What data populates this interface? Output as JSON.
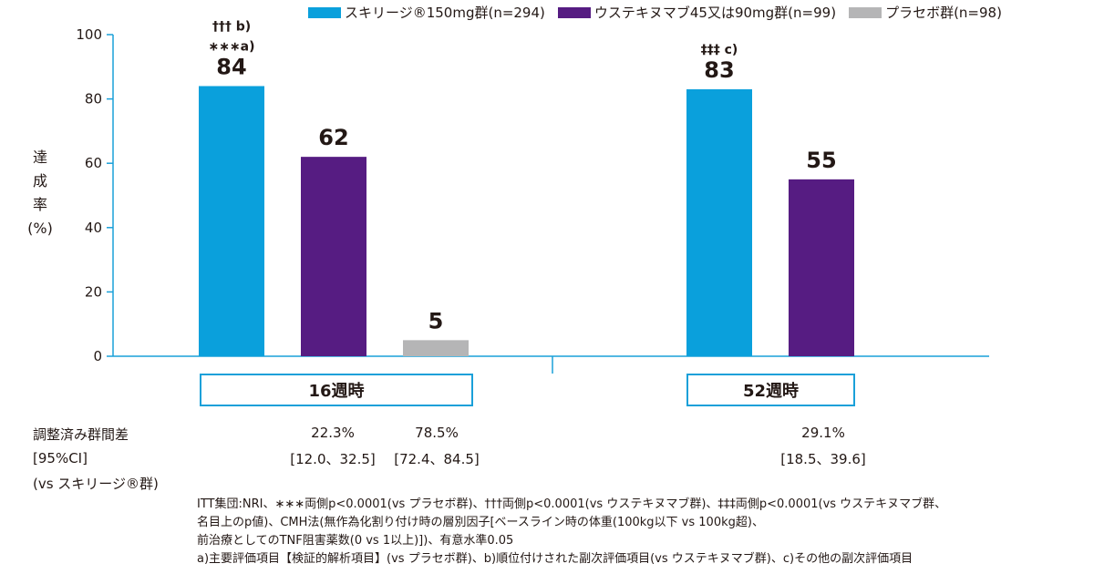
{
  "legend": [
    {
      "label": "スキリージ®150mg群(n=294)",
      "color": "#0aa0dc"
    },
    {
      "label": "ウステキヌマブ45又は90mg群(n=99)",
      "color": "#561c82"
    },
    {
      "label": "プラセボ群(n=98)",
      "color": "#b5b5b6"
    }
  ],
  "ylabel_main": "達成率",
  "ylabel_unit": "(%)",
  "chart_data": {
    "type": "bar",
    "categories": [
      "16週時",
      "52週時"
    ],
    "series": [
      {
        "name": "スキリージ®150mg群(n=294)",
        "values": [
          84,
          83
        ],
        "color": "#0aa0dc"
      },
      {
        "name": "ウステキヌマブ45又は90mg群(n=99)",
        "values": [
          62,
          55
        ],
        "color": "#561c82"
      },
      {
        "name": "プラセボ群(n=98)",
        "values": [
          5,
          null
        ],
        "color": "#b5b5b6"
      }
    ],
    "ylim": [
      0,
      100
    ],
    "yticks": [
      0,
      20,
      40,
      60,
      80,
      100
    ],
    "ylabel": "達成率(%)",
    "annotations": [
      {
        "group": 0,
        "series": 0,
        "lines": [
          "††† b)",
          "∗∗∗a)"
        ]
      },
      {
        "group": 1,
        "series": 0,
        "lines": [
          "‡‡‡ c)"
        ]
      }
    ]
  },
  "diff": {
    "label_lines": [
      "調整済み群間差",
      "[95%CI]",
      "(vs スキリージ®群)"
    ],
    "values": [
      {
        "pct": "22.3%",
        "ci": "[12.0、32.5]"
      },
      {
        "pct": "78.5%",
        "ci": "[72.4、84.5]"
      },
      {
        "pct": "29.1%",
        "ci": "[18.5、39.6]"
      }
    ]
  },
  "notes": [
    "ITT集団:NRI、∗∗∗両側p<0.0001(vs プラセボ群)、†††両側p<0.0001(vs ウステキヌマブ群)、‡‡‡両側p<0.0001(vs ウステキヌマブ群、",
    "名目上のp値)、CMH法(無作為化割り付け時の層別因子[ベースライン時の体重(100kg以下 vs 100kg超)、",
    "前治療としてのTNF阻害薬数(0 vs 1以上)])、有意水準0.05",
    "a)主要評価項目【検証的解析項目】(vs プラセボ群)、b)順位付けされた副次評価項目(vs ウステキヌマブ群)、c)その他の副次評価項目"
  ]
}
